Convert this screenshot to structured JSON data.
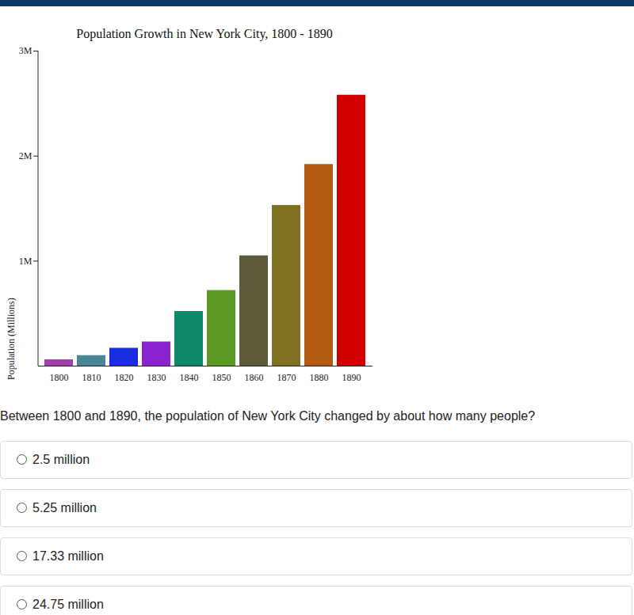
{
  "chart_data": {
    "type": "bar",
    "title": "Population Growth in New York City, 1800 - 1890",
    "y_label": "Population (Millions)",
    "categories": [
      "1800",
      "1810",
      "1820",
      "1830",
      "1840",
      "1850",
      "1860",
      "1870",
      "1880",
      "1890"
    ],
    "values": [
      0.06,
      0.1,
      0.17,
      0.23,
      0.52,
      0.72,
      1.05,
      1.53,
      1.92,
      2.58
    ],
    "colors": [
      "#a040a8",
      "#4a8796",
      "#1c2ce0",
      "#8a22d0",
      "#0d8a6a",
      "#5a9a22",
      "#5c5a3a",
      "#807022",
      "#b05a12",
      "#d00000"
    ],
    "ylim": [
      0,
      3
    ],
    "yticks": [
      {
        "value": 1,
        "label": "1M"
      },
      {
        "value": 2,
        "label": "2M"
      },
      {
        "value": 3,
        "label": "3M"
      }
    ]
  },
  "question": "Between 1800 and 1890, the population of New York City changed by about how many people?",
  "options": [
    "2.5 million",
    "5.25 million",
    "17.33 million",
    "24.75 million"
  ]
}
